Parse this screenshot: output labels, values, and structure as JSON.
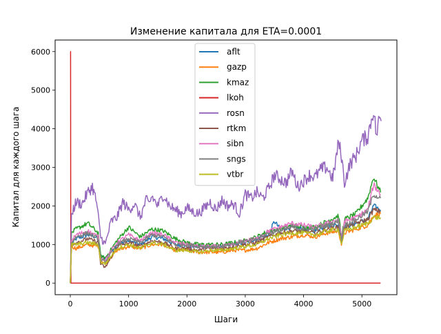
{
  "chart_data": {
    "type": "line",
    "title": "Изменение капитала для ETA=0.0001",
    "xlabel": "Шаги",
    "ylabel": "Капитал для каждого шага",
    "xlim": [
      -260,
      5600
    ],
    "ylim": [
      -300,
      6300
    ],
    "xticks": [
      0,
      1000,
      2000,
      3000,
      4000,
      5000
    ],
    "xtick_labels": [
      "0",
      "1000",
      "2000",
      "3000",
      "4000",
      "5000"
    ],
    "yticks": [
      0,
      1000,
      2000,
      3000,
      4000,
      5000,
      6000
    ],
    "ytick_labels": [
      "0",
      "1000",
      "2000",
      "3000",
      "4000",
      "5000",
      "6000"
    ],
    "grid": false,
    "legend_position": "top-center",
    "series": [
      {
        "name": "aflt",
        "color": "#1f77b4",
        "x": [
          0,
          20,
          100,
          300,
          480,
          520,
          600,
          800,
          1000,
          1200,
          1400,
          1600,
          1800,
          2000,
          2200,
          2400,
          2600,
          2800,
          3000,
          3200,
          3400,
          3500,
          3600,
          3800,
          4000,
          4200,
          4400,
          4600,
          4650,
          4700,
          4900,
          5100,
          5200,
          5320
        ],
        "y": [
          0,
          1000,
          1150,
          1250,
          1180,
          700,
          650,
          1000,
          1100,
          1000,
          1200,
          1150,
          1000,
          950,
          950,
          950,
          950,
          1000,
          1050,
          1150,
          1250,
          1600,
          1400,
          1450,
          1400,
          1350,
          1500,
          1500,
          1100,
          1450,
          1550,
          1650,
          2000,
          1900
        ]
      },
      {
        "name": "gazp",
        "color": "#ff7f0e",
        "x": [
          0,
          20,
          100,
          300,
          480,
          520,
          600,
          800,
          1000,
          1200,
          1400,
          1600,
          1800,
          2000,
          2200,
          2400,
          2600,
          2800,
          3000,
          3200,
          3400,
          3600,
          3800,
          4000,
          4200,
          4400,
          4600,
          4650,
          4700,
          4900,
          5100,
          5200,
          5320
        ],
        "y": [
          0,
          950,
          900,
          1000,
          950,
          600,
          500,
          850,
          950,
          900,
          1000,
          1000,
          850,
          850,
          800,
          800,
          800,
          850,
          850,
          900,
          1050,
          1150,
          1200,
          1250,
          1200,
          1300,
          1350,
          1000,
          1300,
          1400,
          1500,
          1750,
          1800
        ]
      },
      {
        "name": "kmaz",
        "color": "#2ca02c",
        "x": [
          0,
          20,
          100,
          300,
          480,
          520,
          600,
          800,
          1000,
          1200,
          1400,
          1600,
          1800,
          2000,
          2200,
          2400,
          2600,
          2800,
          3000,
          3200,
          3400,
          3600,
          3800,
          4000,
          4200,
          4400,
          4600,
          4650,
          4700,
          4900,
          5100,
          5200,
          5320
        ],
        "y": [
          0,
          1300,
          1400,
          1550,
          1300,
          700,
          650,
          1100,
          1450,
          1200,
          1400,
          1350,
          1150,
          1050,
          1000,
          1000,
          1000,
          1050,
          1100,
          1200,
          1350,
          1400,
          1500,
          1450,
          1450,
          1600,
          1750,
          1200,
          1650,
          1800,
          2200,
          2750,
          2350
        ]
      },
      {
        "name": "lkoh",
        "color": "#d62728",
        "x": [
          0,
          5,
          8,
          12,
          30,
          5320
        ],
        "y": [
          6000,
          6000,
          1000,
          0,
          0,
          0
        ]
      },
      {
        "name": "rosn",
        "color": "#9467bd",
        "x": [
          0,
          20,
          100,
          200,
          300,
          380,
          450,
          520,
          600,
          700,
          800,
          900,
          1000,
          1100,
          1200,
          1300,
          1350,
          1400,
          1500,
          1600,
          1700,
          1800,
          1900,
          2000,
          2100,
          2200,
          2300,
          2400,
          2500,
          2600,
          2700,
          2800,
          2900,
          3000,
          3100,
          3200,
          3300,
          3400,
          3500,
          3600,
          3700,
          3800,
          3900,
          4000,
          4100,
          4200,
          4300,
          4400,
          4500,
          4600,
          4650,
          4700,
          4800,
          4900,
          5000,
          5100,
          5200,
          5250,
          5300,
          5330
        ],
        "y": [
          0,
          1800,
          2100,
          2050,
          2350,
          2500,
          2100,
          1200,
          1000,
          1600,
          1700,
          2100,
          1900,
          2050,
          1700,
          2150,
          2050,
          2250,
          2000,
          2300,
          2000,
          1900,
          1800,
          1950,
          1850,
          1800,
          1950,
          2100,
          1900,
          2150,
          2000,
          2050,
          1800,
          2300,
          2200,
          2350,
          2200,
          2450,
          2800,
          2700,
          2600,
          2900,
          2500,
          2650,
          2800,
          2750,
          2950,
          3000,
          2700,
          3650,
          3300,
          2600,
          3100,
          3300,
          3700,
          3800,
          4500,
          3800,
          4300,
          4200
        ]
      },
      {
        "name": "rtkm",
        "color": "#8c564b",
        "x": [
          0,
          20,
          100,
          300,
          480,
          520,
          600,
          800,
          1000,
          1200,
          1400,
          1600,
          1800,
          2000,
          2200,
          2400,
          2600,
          2800,
          3000,
          3200,
          3400,
          3600,
          3800,
          4000,
          4200,
          4400,
          4600,
          4650,
          4700,
          4900,
          5100,
          5200,
          5320
        ],
        "y": [
          0,
          1000,
          1050,
          1150,
          1050,
          500,
          400,
          950,
          1050,
          950,
          1100,
          1050,
          900,
          900,
          850,
          900,
          900,
          950,
          1000,
          1050,
          1200,
          1300,
          1350,
          1350,
          1300,
          1400,
          1450,
          1100,
          1450,
          1550,
          1650,
          1900,
          1850
        ]
      },
      {
        "name": "sibn",
        "color": "#e377c2",
        "x": [
          0,
          20,
          100,
          300,
          480,
          520,
          600,
          800,
          1000,
          1200,
          1400,
          1600,
          1800,
          2000,
          2200,
          2400,
          2600,
          2800,
          3000,
          3200,
          3400,
          3600,
          3800,
          4000,
          4200,
          4400,
          4600,
          4650,
          4700,
          4900,
          5100,
          5200,
          5320
        ],
        "y": [
          0,
          1100,
          1250,
          1350,
          1200,
          650,
          600,
          1050,
          1250,
          1100,
          1300,
          1250,
          1050,
          1000,
          950,
          950,
          950,
          1000,
          1100,
          1150,
          1350,
          1450,
          1550,
          1500,
          1450,
          1550,
          1650,
          1150,
          1600,
          1700,
          1900,
          2550,
          2300
        ]
      },
      {
        "name": "sngs",
        "color": "#7f7f7f",
        "x": [
          0,
          20,
          100,
          300,
          480,
          520,
          600,
          800,
          1000,
          1200,
          1400,
          1600,
          1800,
          2000,
          2200,
          2400,
          2600,
          2800,
          3000,
          3200,
          3400,
          3600,
          3800,
          4000,
          4200,
          4400,
          4600,
          4650,
          4700,
          4900,
          5100,
          5200,
          5320
        ],
        "y": [
          0,
          1050,
          1200,
          1300,
          1150,
          600,
          550,
          1000,
          1150,
          1050,
          1250,
          1200,
          1000,
          1000,
          950,
          950,
          950,
          1000,
          1100,
          1150,
          1300,
          1350,
          1450,
          1400,
          1400,
          1500,
          1600,
          1100,
          1500,
          1650,
          1850,
          2300,
          2200
        ]
      },
      {
        "name": "vtbr",
        "color": "#bcbd22",
        "x": [
          0,
          20,
          100,
          300,
          480,
          520,
          600,
          800,
          1000,
          1200,
          1400,
          1600,
          1800,
          2000,
          2200,
          2400,
          2600,
          2800,
          3000,
          3200,
          3400,
          3600,
          3800,
          4000,
          4200,
          4400,
          4600,
          4650,
          4700,
          4900,
          5100,
          5200,
          5320
        ],
        "y": [
          0,
          1000,
          1000,
          1050,
          1000,
          550,
          500,
          900,
          1000,
          900,
          1050,
          1000,
          850,
          850,
          800,
          850,
          850,
          900,
          950,
          1000,
          1150,
          1250,
          1300,
          1300,
          1250,
          1350,
          1400,
          1000,
          1350,
          1450,
          1550,
          1700,
          1700
        ]
      }
    ]
  }
}
